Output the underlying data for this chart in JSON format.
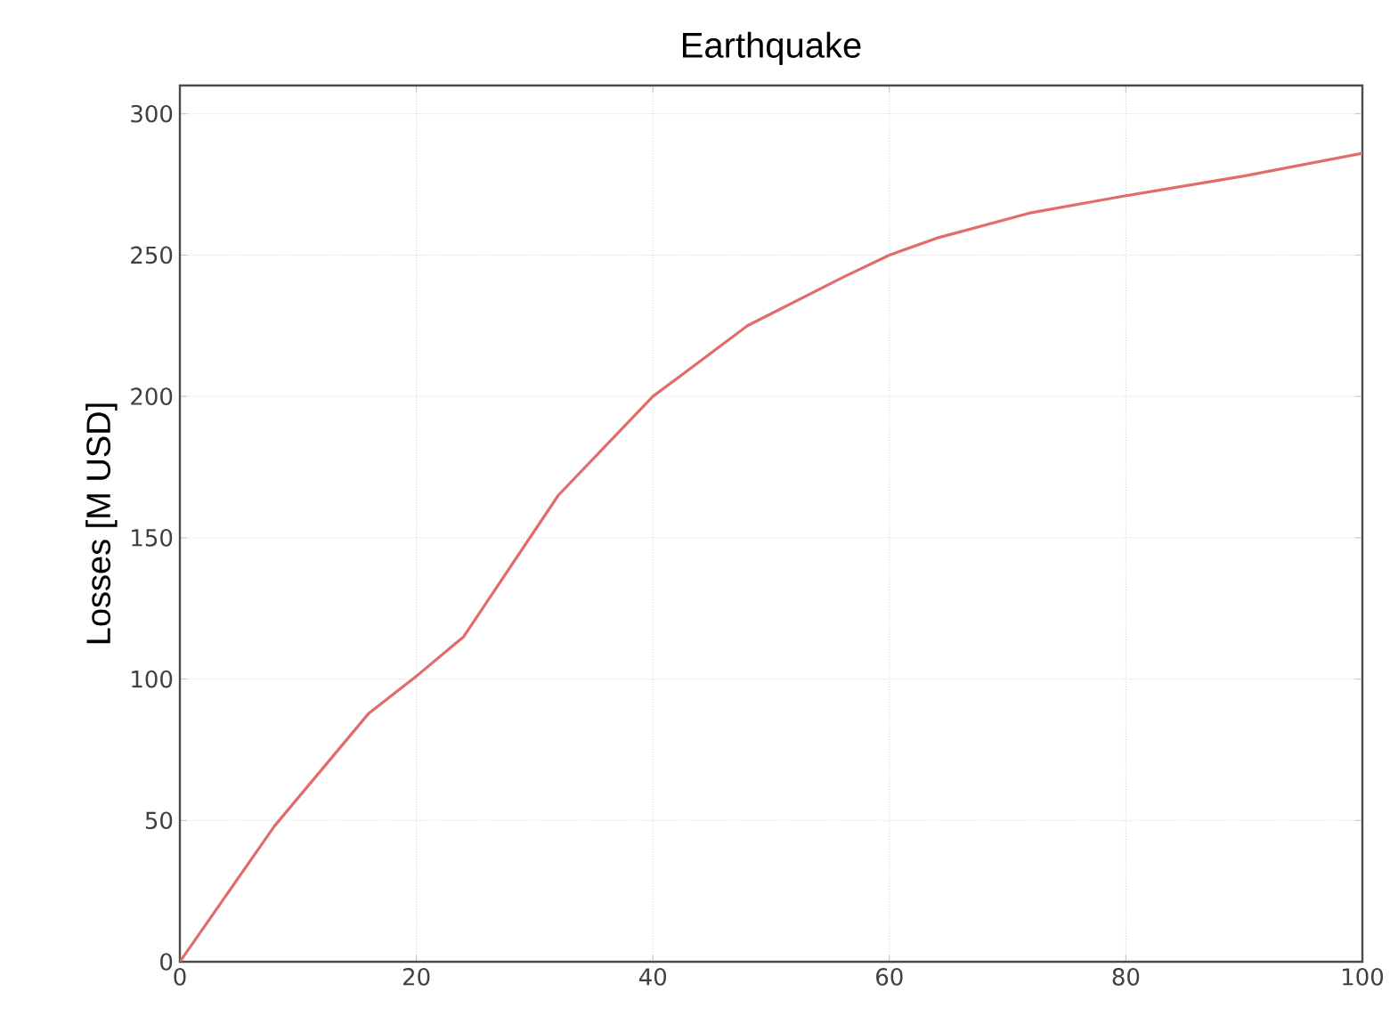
{
  "chart_data": {
    "type": "line",
    "title": "Earthquake",
    "ylabel": "Losses [M USD]",
    "x": [
      0,
      8,
      16,
      20,
      24,
      32,
      40,
      48,
      56,
      60,
      64,
      72,
      80,
      90,
      100
    ],
    "series": [
      {
        "color": "#e06c6c",
        "values": [
          0,
          48,
          88,
          101,
          115,
          165,
          200,
          225,
          242,
          250,
          256,
          265,
          271,
          278,
          286
        ]
      }
    ],
    "xlim": [
      0,
      100
    ],
    "ylim": [
      0,
      310
    ],
    "xticks": [
      0,
      20,
      40,
      60,
      80,
      100
    ],
    "yticks": [
      0,
      50,
      100,
      150,
      200,
      250,
      300
    ],
    "grid": true,
    "legend": false,
    "marker": "none",
    "line_style": "solid"
  }
}
